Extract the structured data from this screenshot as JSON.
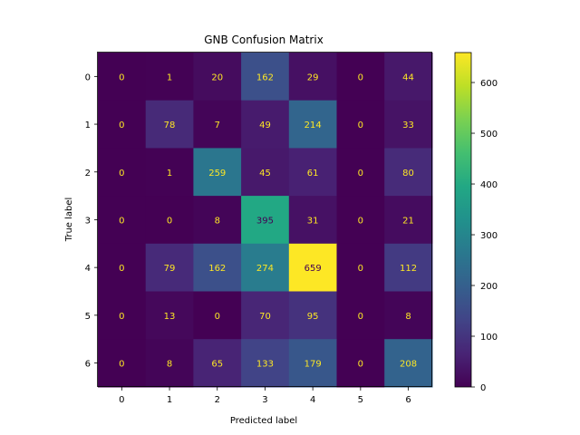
{
  "chart_data": {
    "type": "heatmap",
    "title": "GNB Confusion Matrix",
    "xlabel": "Predicted label",
    "ylabel": "True label",
    "x_categories": [
      "0",
      "1",
      "2",
      "3",
      "4",
      "5",
      "6"
    ],
    "y_categories": [
      "0",
      "1",
      "2",
      "3",
      "4",
      "5",
      "6"
    ],
    "values": [
      [
        0,
        1,
        20,
        162,
        29,
        0,
        44
      ],
      [
        0,
        78,
        7,
        49,
        214,
        0,
        33
      ],
      [
        0,
        1,
        259,
        45,
        61,
        0,
        80
      ],
      [
        0,
        0,
        8,
        395,
        31,
        0,
        21
      ],
      [
        0,
        79,
        162,
        274,
        659,
        0,
        112
      ],
      [
        0,
        13,
        0,
        70,
        95,
        0,
        8
      ],
      [
        0,
        8,
        65,
        133,
        179,
        0,
        208
      ]
    ],
    "colormap": "viridis",
    "color_range": [
      0,
      659
    ],
    "colorbar_ticks": [
      0,
      100,
      200,
      300,
      400,
      500,
      600
    ],
    "text_colors": {
      "low": "#fde725",
      "high": "#440154"
    }
  }
}
